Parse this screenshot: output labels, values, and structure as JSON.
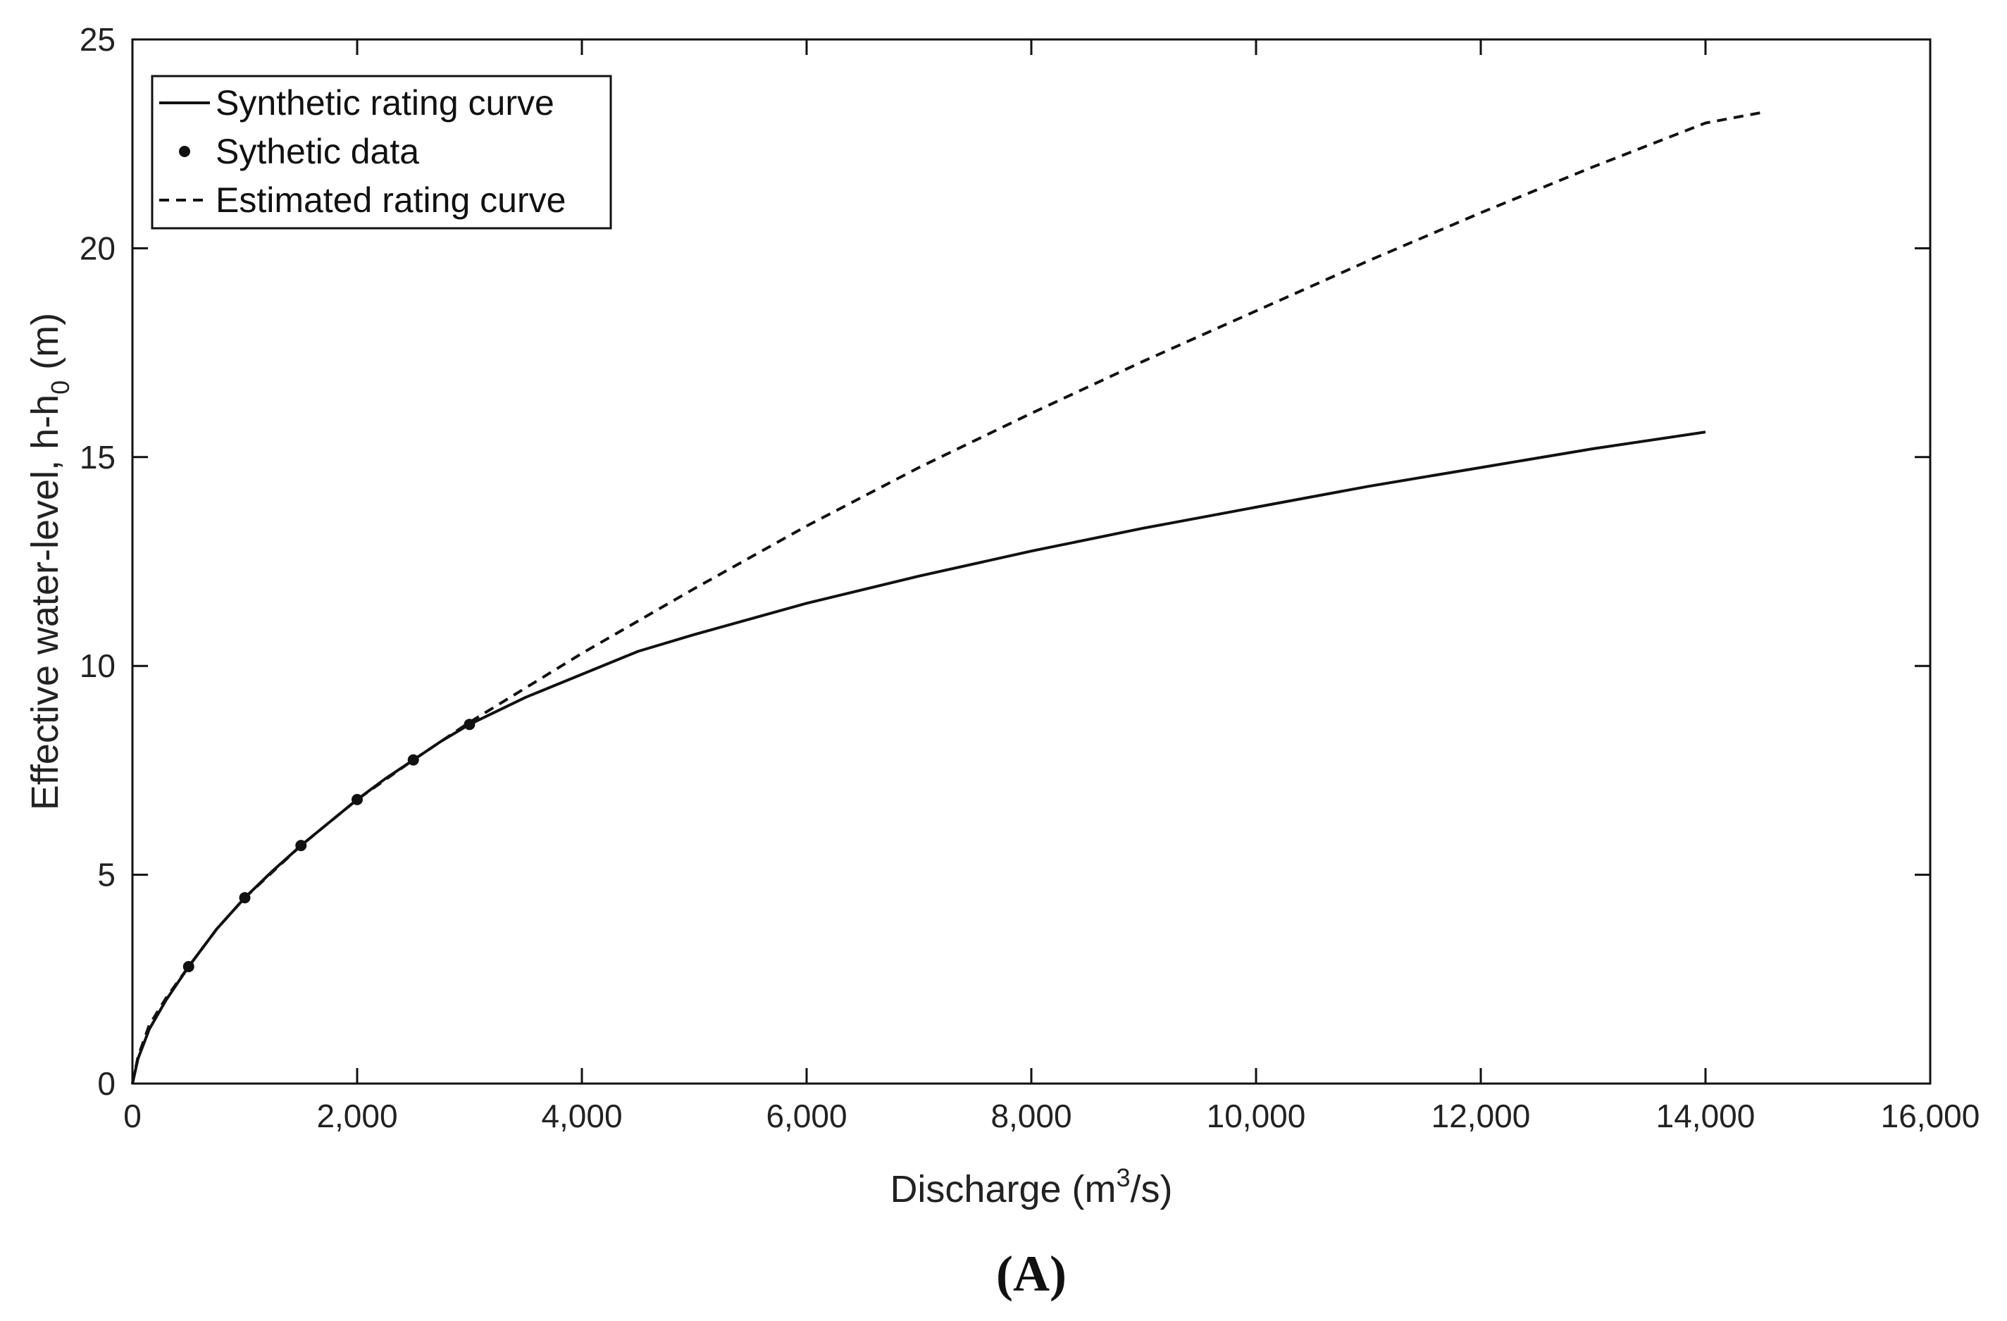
{
  "chart_data": {
    "type": "line",
    "title": "",
    "xlabel": {
      "prefix": "Discharge (m",
      "sup": "3",
      "suffix": "/s)"
    },
    "ylabel": {
      "prefix": "Effective water-level, h-h",
      "sub": "0",
      "suffix": " (m)"
    },
    "xlim": [
      0,
      16000
    ],
    "ylim": [
      0,
      25
    ],
    "xticks": [
      0,
      2000,
      4000,
      6000,
      8000,
      10000,
      12000,
      14000,
      16000
    ],
    "xtick_labels": [
      "0",
      "2,000",
      "4,000",
      "6,000",
      "8,000",
      "10,000",
      "12,000",
      "14,000",
      "16,000"
    ],
    "yticks": [
      0,
      5,
      10,
      15,
      20,
      25
    ],
    "ytick_labels": [
      "0",
      "5",
      "10",
      "15",
      "20",
      "25"
    ],
    "grid": false,
    "legend_position": "top-left",
    "series": [
      {
        "name": "Synthetic rating curve",
        "style": "solid",
        "color": "#111111",
        "x": [
          0,
          50,
          150,
          300,
          500,
          750,
          1000,
          1250,
          1500,
          1750,
          2000,
          2250,
          2500,
          2750,
          3000,
          3500,
          4000,
          4500,
          5000,
          6000,
          7000,
          8000,
          9000,
          10000,
          11000,
          12000,
          13000,
          14000
        ],
        "y": [
          0,
          0.6,
          1.3,
          2.0,
          2.8,
          3.7,
          4.45,
          5.1,
          5.7,
          6.25,
          6.8,
          7.3,
          7.75,
          8.2,
          8.6,
          9.25,
          9.8,
          10.35,
          10.75,
          11.5,
          12.15,
          12.75,
          13.3,
          13.8,
          14.3,
          14.75,
          15.2,
          15.6
        ]
      },
      {
        "name": "Sythetic data",
        "style": "markers",
        "color": "#111111",
        "x": [
          500,
          1000,
          1500,
          2000,
          2500,
          3000
        ],
        "y": [
          2.8,
          4.45,
          5.7,
          6.8,
          7.75,
          8.6
        ]
      },
      {
        "name": "Estimated rating curve",
        "style": "dashed",
        "color": "#111111",
        "x": [
          0,
          50,
          150,
          300,
          500,
          750,
          1000,
          1500,
          2000,
          2500,
          3000,
          4000,
          5000,
          6000,
          7000,
          8000,
          9000,
          10000,
          11000,
          12000,
          13000,
          14000,
          14500
        ],
        "y": [
          0,
          0.65,
          1.4,
          2.05,
          2.8,
          3.7,
          4.45,
          5.7,
          6.8,
          7.75,
          8.65,
          10.3,
          11.85,
          13.35,
          14.75,
          16.05,
          17.3,
          18.5,
          19.7,
          20.85,
          21.95,
          23.0,
          23.25
        ]
      }
    ]
  },
  "legend": {
    "items": [
      "Synthetic rating curve",
      "Sythetic data",
      "Estimated rating curve"
    ]
  },
  "panel_label": "(A)"
}
